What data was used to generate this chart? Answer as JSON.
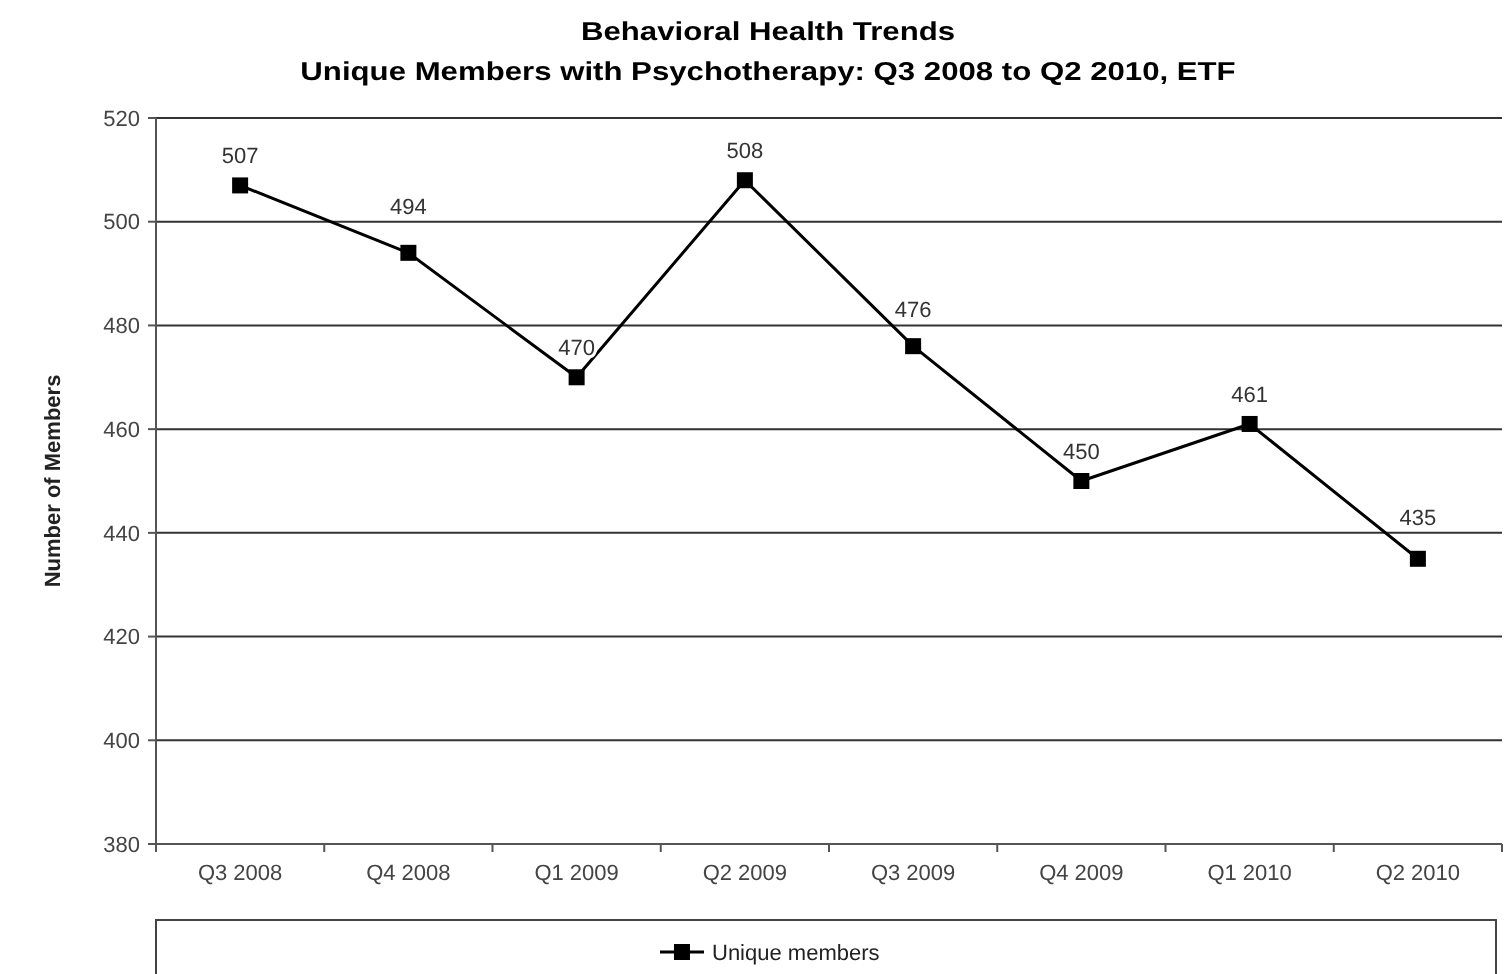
{
  "chart_data": {
    "type": "line",
    "title": "Behavioral Health Trends",
    "subtitle": "Unique Members with Psychotherapy: Q3 2008 to Q2 2010, ETF",
    "ylabel": "Number of Members",
    "categories": [
      "Q3 2008",
      "Q4 2008",
      "Q1 2009",
      "Q2 2009",
      "Q3 2009",
      "Q4 2009",
      "Q1 2010",
      "Q2 2010"
    ],
    "series": [
      {
        "name": "Unique members",
        "color": "#000000",
        "values": [
          507,
          494,
          470,
          508,
          476,
          450,
          461,
          435
        ]
      }
    ],
    "ylim": [
      380,
      520
    ],
    "yticks": [
      380,
      400,
      420,
      440,
      460,
      480,
      500,
      520
    ],
    "grid": "y",
    "legend": "bottom",
    "marker": "square",
    "line_style": "solid",
    "data_labels": true
  }
}
